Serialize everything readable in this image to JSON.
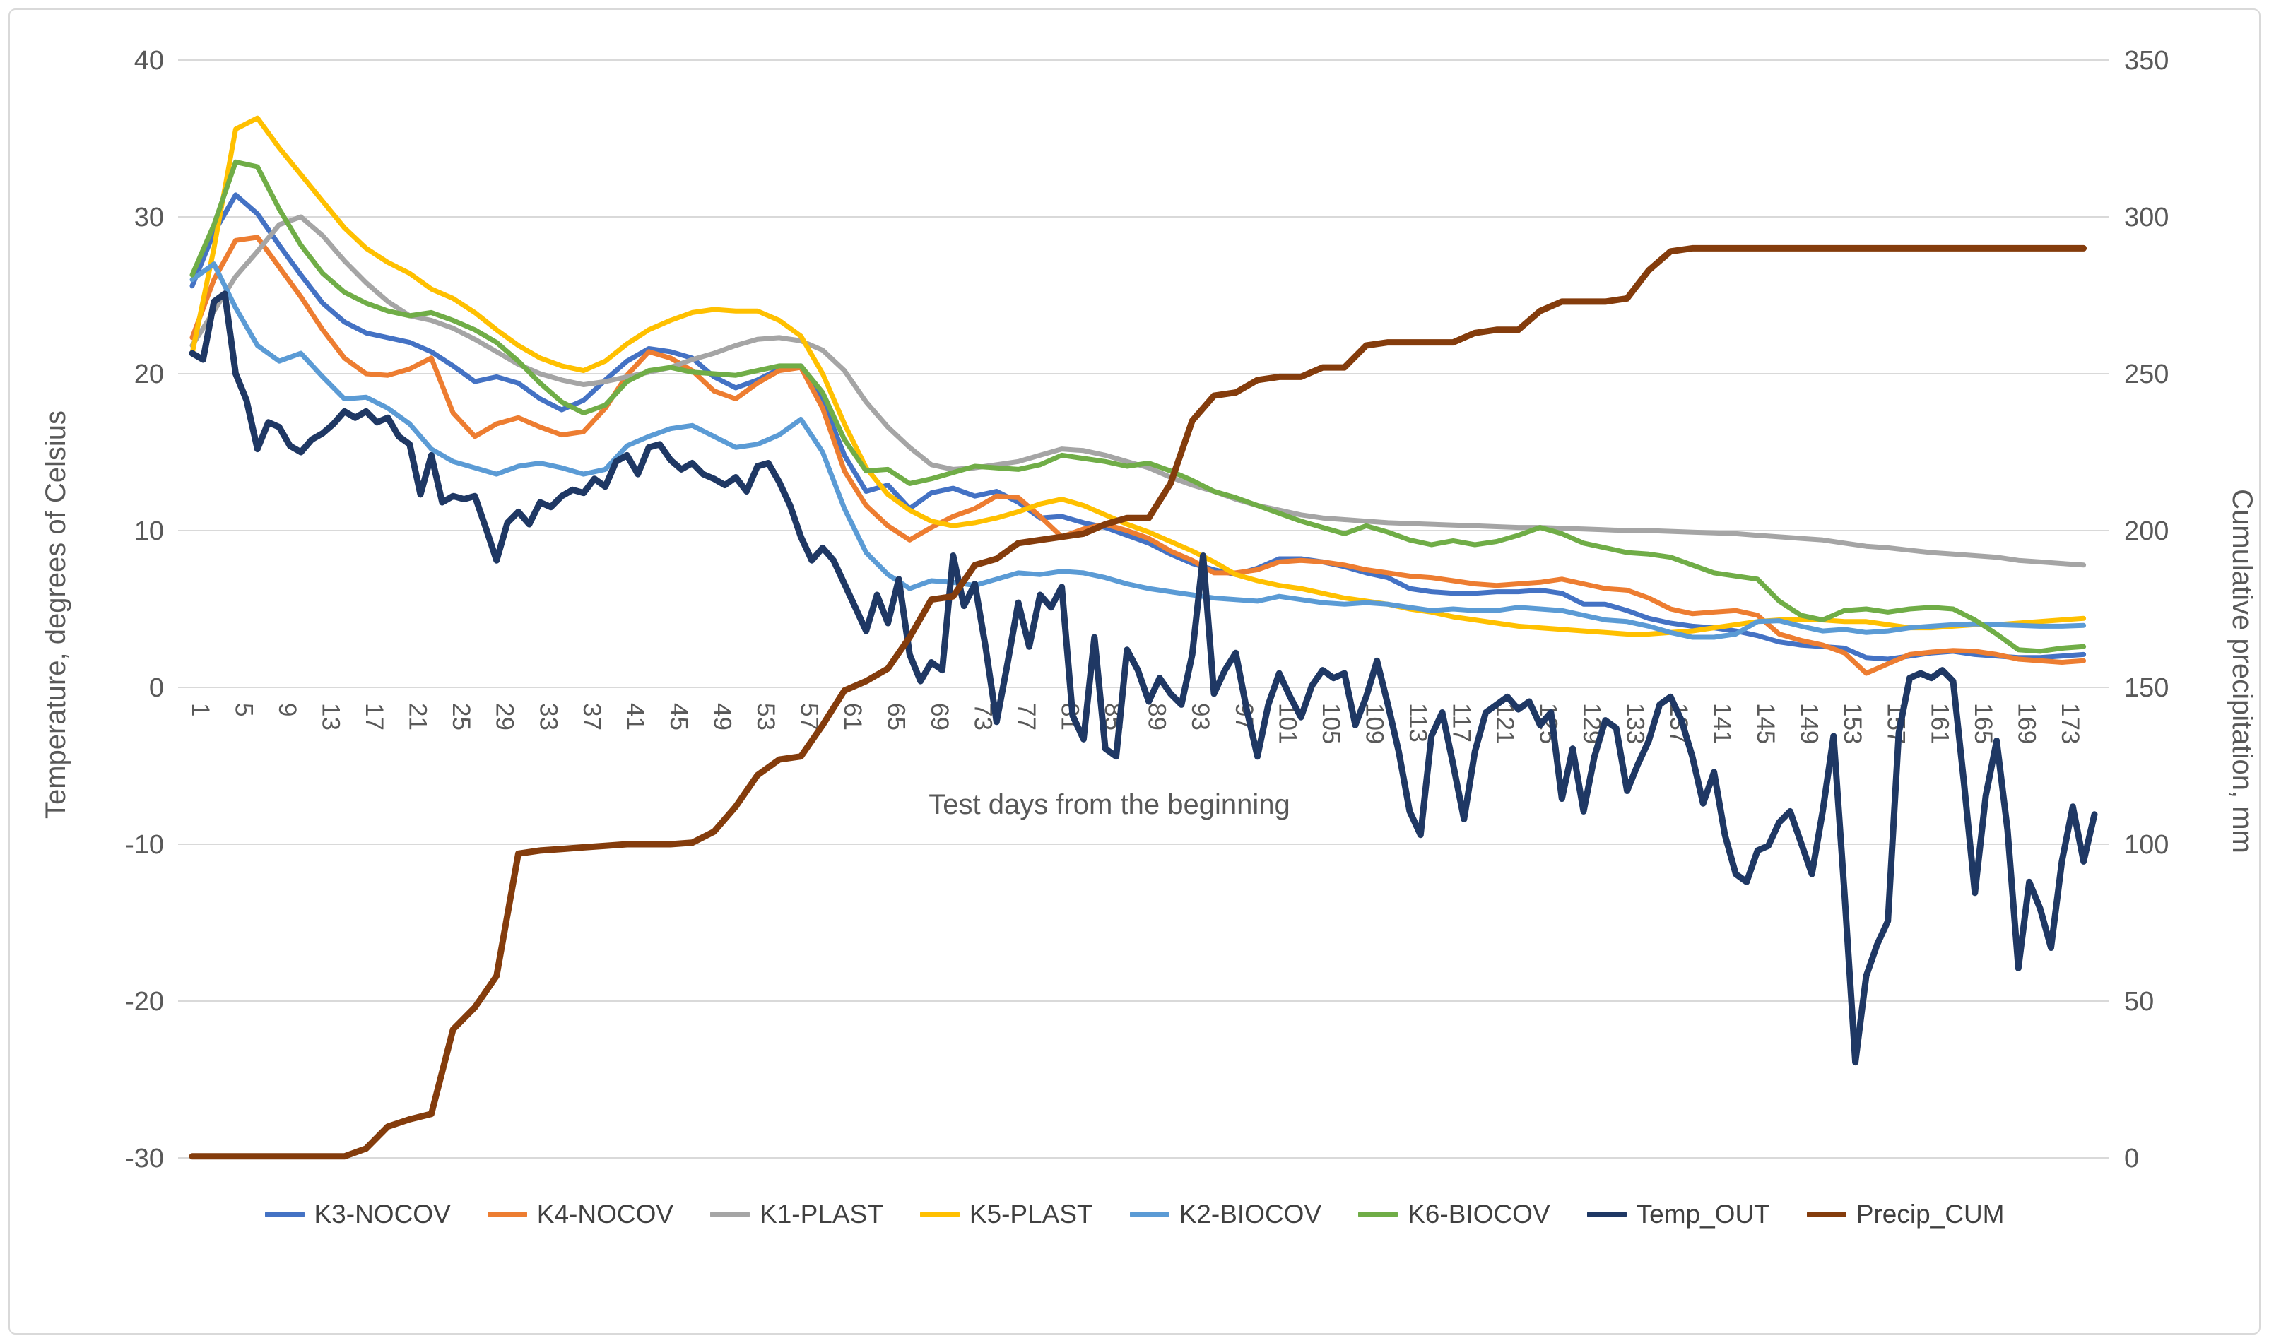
{
  "chart_data": {
    "type": "line",
    "title": "",
    "xlabel": "Test days from the beginning",
    "ylabel_left": "Temperature, degrees of Celsius",
    "ylabel_right": "Cumulative precipitation, mm",
    "x_axis": {
      "first_label": 1,
      "last_label": 173,
      "label_step": 4,
      "min_day": 1,
      "max_day": 176
    },
    "y_axis_left": {
      "min": -30,
      "max": 40,
      "tick_step": 10,
      "tick_labels": [
        "40",
        "30",
        "20",
        "10",
        "0",
        "-10",
        "-20",
        "-30"
      ]
    },
    "y_axis_right": {
      "min": 0,
      "max": 350,
      "tick_step": 50,
      "tick_labels": [
        "350",
        "300",
        "250",
        "200",
        "150",
        "100",
        "50",
        "0"
      ]
    },
    "grid": "horizontal",
    "legend_position": "bottom",
    "colors": {
      "grid": "#d9d9d9",
      "tick_text": "#595959",
      "axis_title": "#595959"
    },
    "series": [
      {
        "name": "K3-NOCOV",
        "color": "#4472C4",
        "width": 7,
        "axis": "left",
        "day_step": 2,
        "values": [
          25.6,
          29.0,
          31.4,
          30.2,
          28.2,
          26.3,
          24.5,
          23.3,
          22.6,
          22.3,
          22.0,
          21.4,
          20.5,
          19.5,
          19.8,
          19.4,
          18.4,
          17.7,
          18.3,
          19.6,
          20.8,
          21.6,
          21.4,
          21.0,
          19.8,
          19.1,
          19.6,
          20.3,
          20.5,
          18.3,
          14.8,
          12.5,
          12.9,
          11.4,
          12.4,
          12.7,
          12.2,
          12.5,
          11.8,
          10.8,
          10.9,
          10.5,
          10.2,
          9.7,
          9.2,
          8.5,
          7.9,
          7.5,
          7.2,
          7.6,
          8.2,
          8.2,
          8.0,
          7.7,
          7.3,
          7.0,
          6.3,
          6.1,
          6.0,
          6.0,
          6.1,
          6.1,
          6.2,
          6.0,
          5.3,
          5.3,
          4.9,
          4.4,
          4.1,
          3.9,
          3.8,
          3.6,
          3.3,
          2.9,
          2.7,
          2.6,
          2.5,
          1.9,
          1.8,
          2.0,
          2.2,
          2.3,
          2.1,
          2.0,
          1.9,
          1.9,
          2.0,
          2.1
        ]
      },
      {
        "name": "K4-NOCOV",
        "color": "#ED7D31",
        "width": 7,
        "axis": "left",
        "day_step": 2,
        "values": [
          22.3,
          26.0,
          28.5,
          28.7,
          26.8,
          24.9,
          22.8,
          21.0,
          20.0,
          19.9,
          20.3,
          21.0,
          17.5,
          16.0,
          16.8,
          17.2,
          16.6,
          16.1,
          16.3,
          17.8,
          19.9,
          21.4,
          21.0,
          20.2,
          18.9,
          18.4,
          19.4,
          20.2,
          20.4,
          17.8,
          13.8,
          11.6,
          10.3,
          9.4,
          10.2,
          10.9,
          11.4,
          12.2,
          12.1,
          10.9,
          9.6,
          10.1,
          10.4,
          10.0,
          9.5,
          8.7,
          8.1,
          7.3,
          7.3,
          7.5,
          8.0,
          8.1,
          8.0,
          7.8,
          7.5,
          7.3,
          7.1,
          7.0,
          6.8,
          6.6,
          6.5,
          6.6,
          6.7,
          6.9,
          6.6,
          6.3,
          6.2,
          5.7,
          5.0,
          4.7,
          4.8,
          4.9,
          4.6,
          3.4,
          3.0,
          2.7,
          2.2,
          0.9,
          1.5,
          2.1,
          2.25,
          2.35,
          2.3,
          2.1,
          1.8,
          1.7,
          1.6,
          1.7
        ]
      },
      {
        "name": "K1-PLAST",
        "color": "#A5A5A5",
        "width": 7,
        "axis": "left",
        "day_step": 2,
        "values": [
          21.8,
          24.0,
          26.2,
          27.8,
          29.5,
          30.0,
          28.8,
          27.2,
          25.8,
          24.6,
          23.7,
          23.4,
          22.9,
          22.2,
          21.4,
          20.6,
          20.0,
          19.6,
          19.3,
          19.5,
          19.8,
          20.1,
          20.4,
          20.9,
          21.3,
          21.8,
          22.2,
          22.3,
          22.1,
          21.5,
          20.2,
          18.2,
          16.6,
          15.3,
          14.2,
          13.9,
          14.0,
          14.2,
          14.4,
          14.8,
          15.2,
          15.1,
          14.8,
          14.4,
          14.0,
          13.4,
          12.9,
          12.5,
          12.0,
          11.6,
          11.3,
          11.0,
          10.8,
          10.7,
          10.6,
          10.5,
          10.45,
          10.4,
          10.35,
          10.3,
          10.25,
          10.2,
          10.2,
          10.15,
          10.1,
          10.05,
          10.0,
          10.0,
          9.95,
          9.9,
          9.85,
          9.8,
          9.7,
          9.6,
          9.5,
          9.4,
          9.2,
          9.0,
          8.9,
          8.75,
          8.6,
          8.5,
          8.4,
          8.3,
          8.1,
          8.0,
          7.9,
          7.8
        ]
      },
      {
        "name": "K5-PLAST",
        "color": "#FFC000",
        "width": 7,
        "axis": "left",
        "day_step": 2,
        "values": [
          21.3,
          28.0,
          35.6,
          36.3,
          34.4,
          32.7,
          31.0,
          29.3,
          28.0,
          27.1,
          26.4,
          25.4,
          24.8,
          23.9,
          22.8,
          21.8,
          21.0,
          20.5,
          20.2,
          20.8,
          21.9,
          22.8,
          23.4,
          23.9,
          24.1,
          24.0,
          24.0,
          23.4,
          22.4,
          20.0,
          16.8,
          14.0,
          12.3,
          11.3,
          10.6,
          10.3,
          10.5,
          10.8,
          11.2,
          11.7,
          12.0,
          11.6,
          11.0,
          10.4,
          9.9,
          9.3,
          8.7,
          8.0,
          7.2,
          6.8,
          6.5,
          6.3,
          6.0,
          5.7,
          5.5,
          5.3,
          5.0,
          4.8,
          4.5,
          4.3,
          4.1,
          3.9,
          3.8,
          3.7,
          3.6,
          3.5,
          3.4,
          3.4,
          3.5,
          3.6,
          3.8,
          4.0,
          4.2,
          4.3,
          4.3,
          4.3,
          4.2,
          4.2,
          4.0,
          3.8,
          3.8,
          3.9,
          4.0,
          4.0,
          4.1,
          4.2,
          4.3,
          4.4
        ]
      },
      {
        "name": "K2-BIOCOV",
        "color": "#5B9BD5",
        "width": 7,
        "axis": "left",
        "day_step": 2,
        "values": [
          26.0,
          27.0,
          24.2,
          21.8,
          20.8,
          21.3,
          19.8,
          18.4,
          18.5,
          17.8,
          16.8,
          15.2,
          14.4,
          14.0,
          13.6,
          14.1,
          14.3,
          14.0,
          13.6,
          13.9,
          15.4,
          16.0,
          16.5,
          16.7,
          16.0,
          15.3,
          15.5,
          16.1,
          17.1,
          15.0,
          11.4,
          8.6,
          7.2,
          6.3,
          6.8,
          6.7,
          6.5,
          6.9,
          7.3,
          7.2,
          7.4,
          7.3,
          7.0,
          6.6,
          6.3,
          6.1,
          5.9,
          5.7,
          5.6,
          5.5,
          5.8,
          5.6,
          5.4,
          5.3,
          5.4,
          5.3,
          5.1,
          4.9,
          5.0,
          4.9,
          4.9,
          5.1,
          5.0,
          4.9,
          4.6,
          4.3,
          4.2,
          3.9,
          3.5,
          3.2,
          3.2,
          3.4,
          4.2,
          4.25,
          3.9,
          3.6,
          3.7,
          3.5,
          3.6,
          3.8,
          3.9,
          4.0,
          4.05,
          4.0,
          3.95,
          3.9,
          3.9,
          3.95
        ]
      },
      {
        "name": "K6-BIOCOV",
        "color": "#70AD47",
        "width": 7,
        "axis": "left",
        "day_step": 2,
        "values": [
          26.3,
          29.5,
          33.5,
          33.2,
          30.5,
          28.2,
          26.4,
          25.2,
          24.5,
          24.0,
          23.7,
          23.9,
          23.4,
          22.8,
          22.0,
          20.8,
          19.4,
          18.2,
          17.5,
          18.0,
          19.5,
          20.2,
          20.4,
          20.1,
          20.0,
          19.9,
          20.2,
          20.5,
          20.5,
          18.8,
          15.8,
          13.8,
          13.9,
          13.0,
          13.3,
          13.7,
          14.1,
          14.0,
          13.9,
          14.2,
          14.8,
          14.6,
          14.4,
          14.1,
          14.3,
          13.8,
          13.2,
          12.5,
          12.1,
          11.6,
          11.1,
          10.6,
          10.2,
          9.8,
          10.3,
          9.9,
          9.4,
          9.1,
          9.35,
          9.1,
          9.3,
          9.7,
          10.2,
          9.8,
          9.2,
          8.9,
          8.6,
          8.5,
          8.3,
          7.8,
          7.3,
          7.1,
          6.9,
          5.5,
          4.6,
          4.3,
          4.9,
          5.0,
          4.8,
          5.0,
          5.1,
          5.0,
          4.3,
          3.4,
          2.4,
          2.3,
          2.5,
          2.6
        ]
      },
      {
        "name": "Temp_OUT",
        "color": "#1F3864",
        "width": 9,
        "axis": "left",
        "day_step": 1,
        "values": [
          21.3,
          20.9,
          24.6,
          25.1,
          20.0,
          18.3,
          15.2,
          16.9,
          16.6,
          15.4,
          15.0,
          15.8,
          16.2,
          16.8,
          17.6,
          17.2,
          17.6,
          16.9,
          17.2,
          16.0,
          15.5,
          12.3,
          14.8,
          11.8,
          12.2,
          12.0,
          12.2,
          10.2,
          8.1,
          10.5,
          11.2,
          10.4,
          11.8,
          11.5,
          12.2,
          12.6,
          12.4,
          13.3,
          12.8,
          14.4,
          14.8,
          13.6,
          15.3,
          15.5,
          14.5,
          13.9,
          14.3,
          13.6,
          13.3,
          12.9,
          13.4,
          12.5,
          14.1,
          14.3,
          13.1,
          11.6,
          9.6,
          8.1,
          8.9,
          8.1,
          6.6,
          5.1,
          3.6,
          5.9,
          4.1,
          6.9,
          2.1,
          0.4,
          1.6,
          1.1,
          8.4,
          5.2,
          6.6,
          2.5,
          -2.2,
          1.5,
          5.4,
          2.6,
          5.9,
          5.1,
          6.4,
          -1.8,
          -3.3,
          3.2,
          -3.9,
          -4.4,
          2.4,
          1.1,
          -0.9,
          0.6,
          -0.4,
          -1.1,
          2.1,
          8.4,
          -0.4,
          1.1,
          2.2,
          -1.4,
          -4.4,
          -1.1,
          0.9,
          -0.6,
          -1.9,
          0.1,
          1.1,
          0.6,
          0.9,
          -2.4,
          -0.6,
          1.7,
          -1.1,
          -4.1,
          -7.9,
          -9.4,
          -3.1,
          -1.6,
          -4.9,
          -8.4,
          -4.1,
          -1.6,
          -1.1,
          -0.6,
          -1.4,
          -0.9,
          -2.4,
          -1.6,
          -7.1,
          -3.9,
          -7.9,
          -4.4,
          -2.1,
          -2.6,
          -6.6,
          -4.9,
          -3.4,
          -1.1,
          -0.6,
          -2.1,
          -4.4,
          -7.4,
          -5.4,
          -9.4,
          -11.9,
          -12.4,
          -10.4,
          -10.1,
          -8.6,
          -7.9,
          -9.9,
          -11.9,
          -7.9,
          -3.1,
          -13.1,
          -23.9,
          -18.4,
          -16.4,
          -14.9,
          -2.9,
          0.6,
          0.9,
          0.6,
          1.1,
          0.4,
          -6.1,
          -13.1,
          -6.9,
          -3.4,
          -9.1,
          -17.9,
          -12.4,
          -14.1,
          -16.6,
          -11.1,
          -7.6,
          -11.1,
          -8.1
        ]
      },
      {
        "name": "Precip_CUM",
        "color": "#843C0C",
        "width": 9,
        "axis": "right",
        "day_step": 2,
        "values": [
          0.5,
          0.5,
          0.5,
          0.5,
          0.5,
          0.5,
          0.5,
          0.5,
          3,
          10,
          12.3,
          14,
          41,
          48,
          58,
          97,
          98,
          98.5,
          99,
          99.5,
          100,
          100,
          100,
          100.5,
          104,
          112,
          122,
          127,
          128,
          138,
          149,
          152,
          156,
          166,
          178,
          179,
          189,
          191,
          196,
          197,
          198,
          199,
          202,
          204,
          204,
          215,
          235,
          243,
          244,
          248,
          249,
          249,
          252,
          252,
          259,
          260,
          260,
          260,
          260,
          263,
          264,
          264,
          270,
          273,
          273,
          273,
          274,
          283,
          289,
          290,
          290,
          290,
          290,
          290,
          290,
          290,
          290,
          290,
          290,
          290,
          290,
          290,
          290,
          290,
          290,
          290,
          290,
          290
        ]
      }
    ]
  }
}
